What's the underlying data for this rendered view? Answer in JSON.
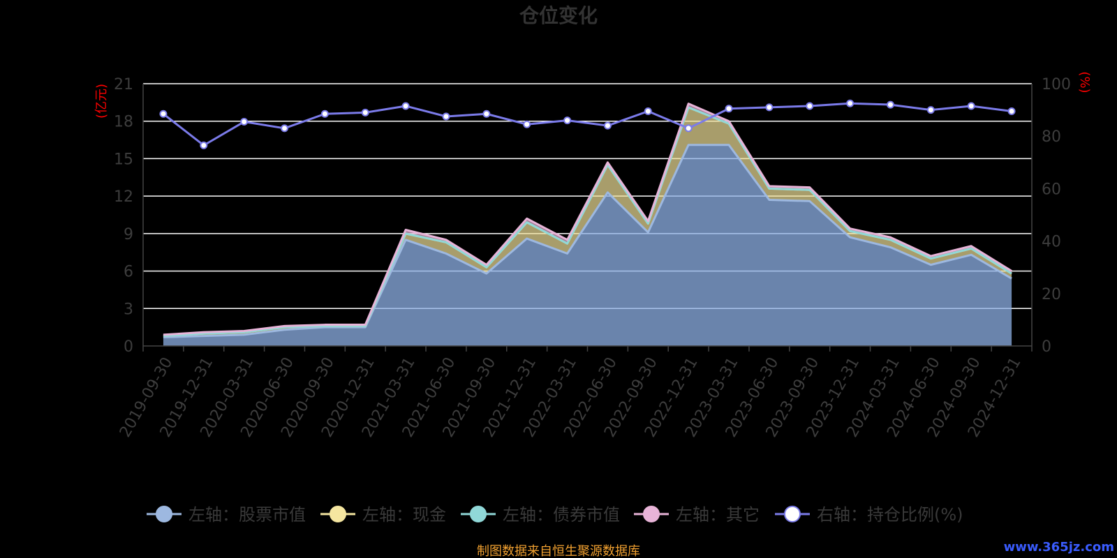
{
  "title": "仓位变化",
  "footer": "制图数据来自恒生聚源数据库",
  "watermark": "www.365jz.com",
  "chart_data": {
    "type": "area",
    "title": "仓位变化",
    "x": [
      "2019-09-30",
      "2019-12-31",
      "2020-03-31",
      "2020-06-30",
      "2020-09-30",
      "2020-12-31",
      "2021-03-31",
      "2021-06-30",
      "2021-09-30",
      "2021-12-31",
      "2022-03-31",
      "2022-06-30",
      "2022-09-30",
      "2022-12-31",
      "2023-03-31",
      "2023-06-30",
      "2023-09-30",
      "2023-12-31",
      "2024-03-31",
      "2024-06-30",
      "2024-09-30",
      "2024-12-31"
    ],
    "left_axis": {
      "unit": "(亿元)",
      "min": 0,
      "max": 21,
      "ticks": [
        0,
        3,
        6,
        9,
        12,
        15,
        18,
        21
      ]
    },
    "right_axis": {
      "unit": "(%)",
      "min": 0,
      "max": 100,
      "ticks": [
        0,
        20,
        40,
        60,
        80,
        100
      ]
    },
    "grid": true,
    "legend_position": "bottom",
    "series": [
      {
        "name": "左轴：股票市值",
        "axis": "left",
        "stacked": true,
        "color": "#9db8e0",
        "values": [
          0.7,
          0.8,
          0.9,
          1.3,
          1.5,
          1.5,
          8.5,
          7.4,
          5.8,
          8.6,
          7.4,
          12.3,
          9.1,
          16.1,
          16.1,
          11.7,
          11.6,
          8.7,
          7.9,
          6.5,
          7.3,
          5.4
        ]
      },
      {
        "name": "左轴：现金",
        "axis": "left",
        "stacked": true,
        "color": "#f5e6a0",
        "values": [
          0.1,
          0.2,
          0.2,
          0.2,
          0.1,
          0.1,
          0.5,
          0.9,
          0.5,
          1.3,
          0.8,
          2.2,
          0.7,
          3.0,
          1.7,
          0.9,
          0.9,
          0.5,
          0.6,
          0.5,
          0.5,
          0.4
        ]
      },
      {
        "name": "左轴：债券市值",
        "axis": "left",
        "stacked": true,
        "color": "#90d8d8",
        "values": [
          0,
          0,
          0,
          0,
          0,
          0,
          0,
          0,
          0,
          0,
          0,
          0,
          0,
          0,
          0,
          0,
          0,
          0,
          0,
          0,
          0,
          0
        ]
      },
      {
        "name": "左轴：其它",
        "axis": "left",
        "stacked": true,
        "color": "#e8b4d8",
        "values": [
          0.1,
          0.1,
          0.1,
          0.1,
          0.1,
          0.1,
          0.3,
          0.2,
          0.2,
          0.3,
          0.3,
          0.2,
          0.2,
          0.3,
          0.2,
          0.2,
          0.2,
          0.2,
          0.2,
          0.2,
          0.2,
          0.2
        ]
      },
      {
        "name": "右轴：持仓比例(%)",
        "axis": "right",
        "type": "line",
        "color": "#7b7bea",
        "values": [
          88.5,
          76.5,
          85.5,
          83,
          88.5,
          89,
          91.5,
          87.5,
          88.5,
          84.5,
          86,
          84,
          89.5,
          83,
          90.5,
          91,
          91.5,
          92.5,
          92,
          90,
          91.5,
          89.5
        ]
      }
    ]
  },
  "colors": {
    "background": "#000000",
    "grid": "#ffffff",
    "area_fill": "#8db0e6",
    "area_cash_fill": "#f0df98"
  }
}
